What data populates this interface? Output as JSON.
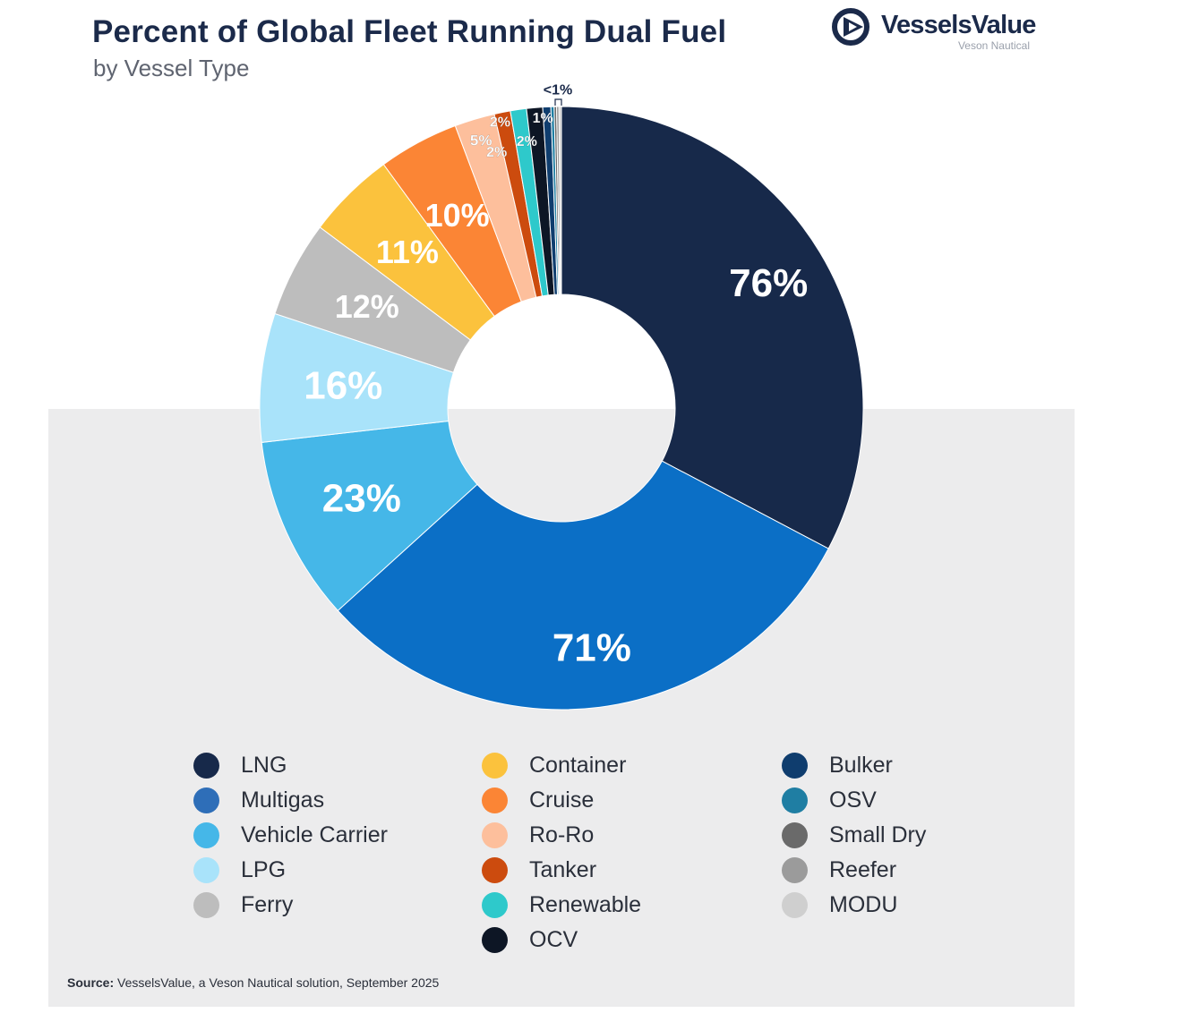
{
  "header": {
    "title": "Percent of Global Fleet Running Dual Fuel",
    "subtitle": "by Vessel Type"
  },
  "logo": {
    "name": "VesselsValue",
    "sub": "Veson Nautical",
    "icon": "vesselsvalue-play-icon"
  },
  "chart_data": {
    "type": "pie",
    "variant": "donut",
    "title": "Percent of Global Fleet Running Dual Fuel",
    "subtitle": "by Vessel Type",
    "unit": "%",
    "slices": [
      {
        "name": "LNG",
        "value": 76,
        "label": "76%",
        "color": "#17294a"
      },
      {
        "name": "Multigas",
        "value": 71,
        "label": "71%",
        "color": "#0b6fc6"
      },
      {
        "name": "Vehicle Carrier",
        "value": 23,
        "label": "23%",
        "color": "#45b7e8"
      },
      {
        "name": "LPG",
        "value": 16,
        "label": "16%",
        "color": "#a9e3fa"
      },
      {
        "name": "Ferry",
        "value": 12,
        "label": "12%",
        "color": "#bdbdbd"
      },
      {
        "name": "Container",
        "value": 11,
        "label": "11%",
        "color": "#fbc23d"
      },
      {
        "name": "Cruise",
        "value": 10,
        "label": "10%",
        "color": "#fb8535"
      },
      {
        "name": "Ro-Ro",
        "value": 5,
        "label": "5%",
        "color": "#fdbf9c"
      },
      {
        "name": "Tanker",
        "value": 2,
        "label": "2%",
        "color": "#cc4b0e"
      },
      {
        "name": "Renewable",
        "value": 2,
        "label": "2%",
        "color": "#2ec9cb"
      },
      {
        "name": "OCV",
        "value": 2,
        "label": "2%",
        "color": "#0d1625"
      },
      {
        "name": "Bulker",
        "value": 1,
        "label": "1%",
        "color": "#0f3d6e"
      },
      {
        "name": "OSV",
        "value": 0.4,
        "label": "<1%",
        "color": "#1f7ea3"
      },
      {
        "name": "Small Dry",
        "value": 0.3,
        "label": "",
        "color": "#6a6a6a"
      },
      {
        "name": "Reefer",
        "value": 0.3,
        "label": "",
        "color": "#9b9b9b"
      },
      {
        "name": "MODU",
        "value": 0.3,
        "label": "",
        "color": "#cfcfcf"
      }
    ]
  },
  "legend": {
    "items": [
      {
        "label": "LNG",
        "color": "#17294a"
      },
      {
        "label": "Multigas",
        "color": "#2e6eb8"
      },
      {
        "label": "Vehicle Carrier",
        "color": "#45b7e8"
      },
      {
        "label": "LPG",
        "color": "#a9e3fa"
      },
      {
        "label": "Ferry",
        "color": "#bdbdbd"
      },
      {
        "label": "Container",
        "color": "#fbc23d"
      },
      {
        "label": "Cruise",
        "color": "#fb8535"
      },
      {
        "label": "Ro-Ro",
        "color": "#fdbf9c"
      },
      {
        "label": "Tanker",
        "color": "#cc4b0e"
      },
      {
        "label": "Renewable",
        "color": "#2ec9cb"
      },
      {
        "label": "OCV",
        "color": "#0d1625"
      },
      {
        "label": "Bulker",
        "color": "#0f3d6e"
      },
      {
        "label": "OSV",
        "color": "#1f7ea3"
      },
      {
        "label": "Small Dry",
        "color": "#6a6a6a"
      },
      {
        "label": "Reefer",
        "color": "#9b9b9b"
      },
      {
        "label": "MODU",
        "color": "#cfcfcf"
      }
    ]
  },
  "footer": {
    "source_label": "Source:",
    "source_text": "VesselsValue, a Veson Nautical solution, September 2025"
  }
}
